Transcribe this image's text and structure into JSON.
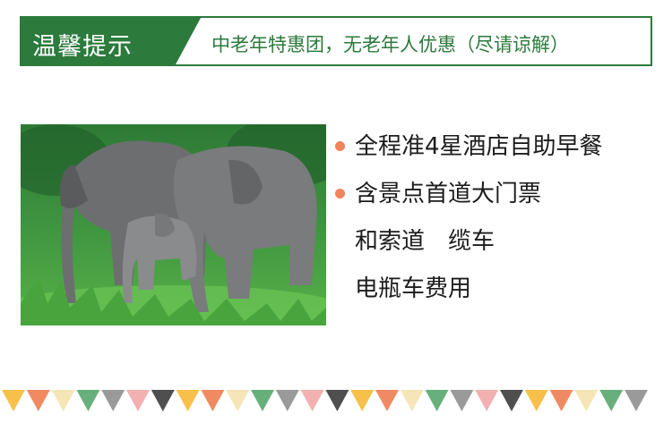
{
  "banner": {
    "tag": "温馨提示",
    "message": "中老年特惠团，无老年人优惠（尽请谅解）"
  },
  "photo": {
    "subject": "elephant-family"
  },
  "features": [
    {
      "text": "全程准4星酒店自助早餐",
      "bullet": true
    },
    {
      "text": "含景点首道大门票",
      "bullet": true
    },
    {
      "text": "和索道　缆车",
      "bullet": false
    },
    {
      "text": "电瓶车费用",
      "bullet": false
    }
  ],
  "colors": {
    "brand_green": "#2c7a3c",
    "bullet": "#f2845c",
    "text": "#1c1c1c",
    "bunting": [
      "#f6c04a",
      "#f08a63",
      "#f6e5b6",
      "#67b07c",
      "#9a9a9a",
      "#f3b0b1",
      "#4f4f4f"
    ]
  }
}
